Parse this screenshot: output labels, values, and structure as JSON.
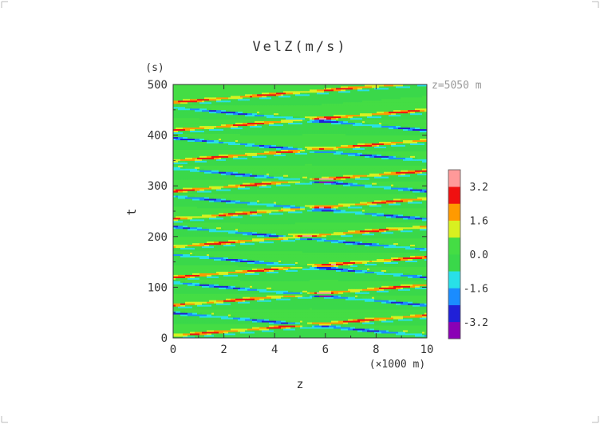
{
  "chart_data": {
    "type": "heatmap",
    "title": "VelZ(m/s)",
    "xlabel": "z",
    "ylabel": "t",
    "x_unit": "(×1000 m)",
    "y_unit": "(s)",
    "annotation": "z=5050 m",
    "xlim": [
      0,
      10
    ],
    "ylim": [
      0,
      500
    ],
    "x_ticks": [
      "0",
      "2",
      "4",
      "6",
      "8",
      "10"
    ],
    "y_ticks": [
      "0",
      "100",
      "200",
      "300",
      "400",
      "500"
    ],
    "colorbar": {
      "labels": [
        "3.2",
        "1.6",
        "0.0",
        "-1.6",
        "-3.2"
      ],
      "label_values": [
        3.2,
        1.6,
        0.0,
        -1.6,
        -3.2
      ],
      "levels": [
        -4.0,
        -3.2,
        -2.4,
        -1.6,
        -0.8,
        0.0,
        0.8,
        1.6,
        2.4,
        3.2,
        4.0
      ],
      "colors": [
        "#8a00b5",
        "#2020d8",
        "#1a8cff",
        "#28e0e8",
        "#3ad84a",
        "#44dd44",
        "#d8f020",
        "#ff9a00",
        "#f01010",
        "#ff9999"
      ]
    },
    "pattern": {
      "upward_bands_t0": [
        5,
        65,
        120,
        180,
        235,
        290,
        350,
        410,
        465
      ],
      "downward_bands_t0": [
        50,
        110,
        165,
        220,
        280,
        335,
        395,
        455
      ],
      "upward_rise_over_domain": 40,
      "downward_drop_over_domain": -45,
      "positive_peak": 3.2,
      "negative_peak": -3.0
    }
  }
}
